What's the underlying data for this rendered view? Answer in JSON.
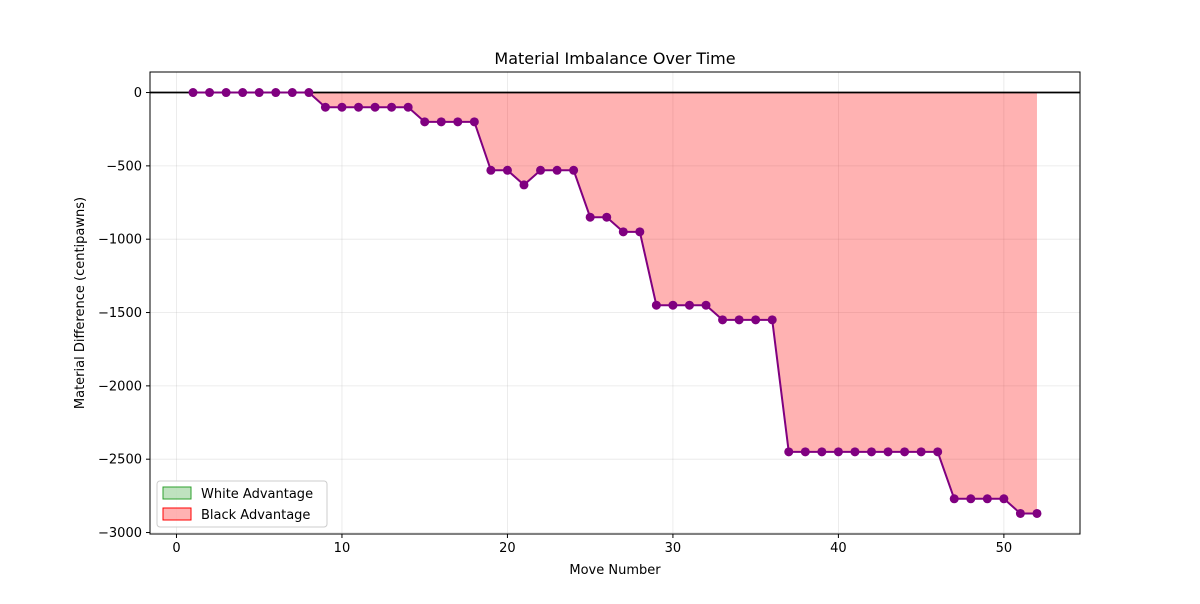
{
  "chart_data": {
    "type": "line",
    "title": "Material Imbalance Over Time",
    "xlabel": "Move Number",
    "ylabel": "Material Difference (centipawns)",
    "xlim": [
      -1.6,
      54.6
    ],
    "ylim": [
      -3010,
      140
    ],
    "xticks": [
      0,
      10,
      20,
      30,
      40,
      50
    ],
    "yticks": [
      0,
      -500,
      -1000,
      -1500,
      -2000,
      -2500,
      -3000
    ],
    "xtick_labels": [
      "0",
      "10",
      "20",
      "30",
      "40",
      "50"
    ],
    "ytick_labels": [
      "0",
      "−500",
      "−1000",
      "−1500",
      "−2000",
      "−2500",
      "−3000"
    ],
    "grid": true,
    "legend_position": "lower-left",
    "legend": [
      {
        "label": "White Advantage",
        "color": "#2ca02c"
      },
      {
        "label": "Black Advantage",
        "color": "#ff0000"
      }
    ],
    "line_color": "#800080",
    "white_fill_color": "#2ca02c",
    "black_fill_color": "#ff0000",
    "x": [
      1,
      2,
      3,
      4,
      5,
      6,
      7,
      8,
      9,
      10,
      11,
      12,
      13,
      14,
      15,
      16,
      17,
      18,
      19,
      20,
      21,
      22,
      23,
      24,
      25,
      26,
      27,
      28,
      29,
      30,
      31,
      32,
      33,
      34,
      35,
      36,
      37,
      38,
      39,
      40,
      41,
      42,
      43,
      44,
      45,
      46,
      47,
      48,
      49,
      50,
      51,
      52
    ],
    "y": [
      0,
      0,
      0,
      0,
      0,
      0,
      0,
      0,
      -100,
      -100,
      -100,
      -100,
      -100,
      -100,
      -200,
      -200,
      -200,
      -200,
      -530,
      -530,
      -630,
      -530,
      -530,
      -530,
      -850,
      -850,
      -950,
      -950,
      -1450,
      -1450,
      -1450,
      -1450,
      -1550,
      -1550,
      -1550,
      -1550,
      -2450,
      -2450,
      -2450,
      -2450,
      -2450,
      -2450,
      -2450,
      -2450,
      -2450,
      -2450,
      -2770,
      -2770,
      -2770,
      -2770,
      -2870,
      -2870
    ]
  }
}
